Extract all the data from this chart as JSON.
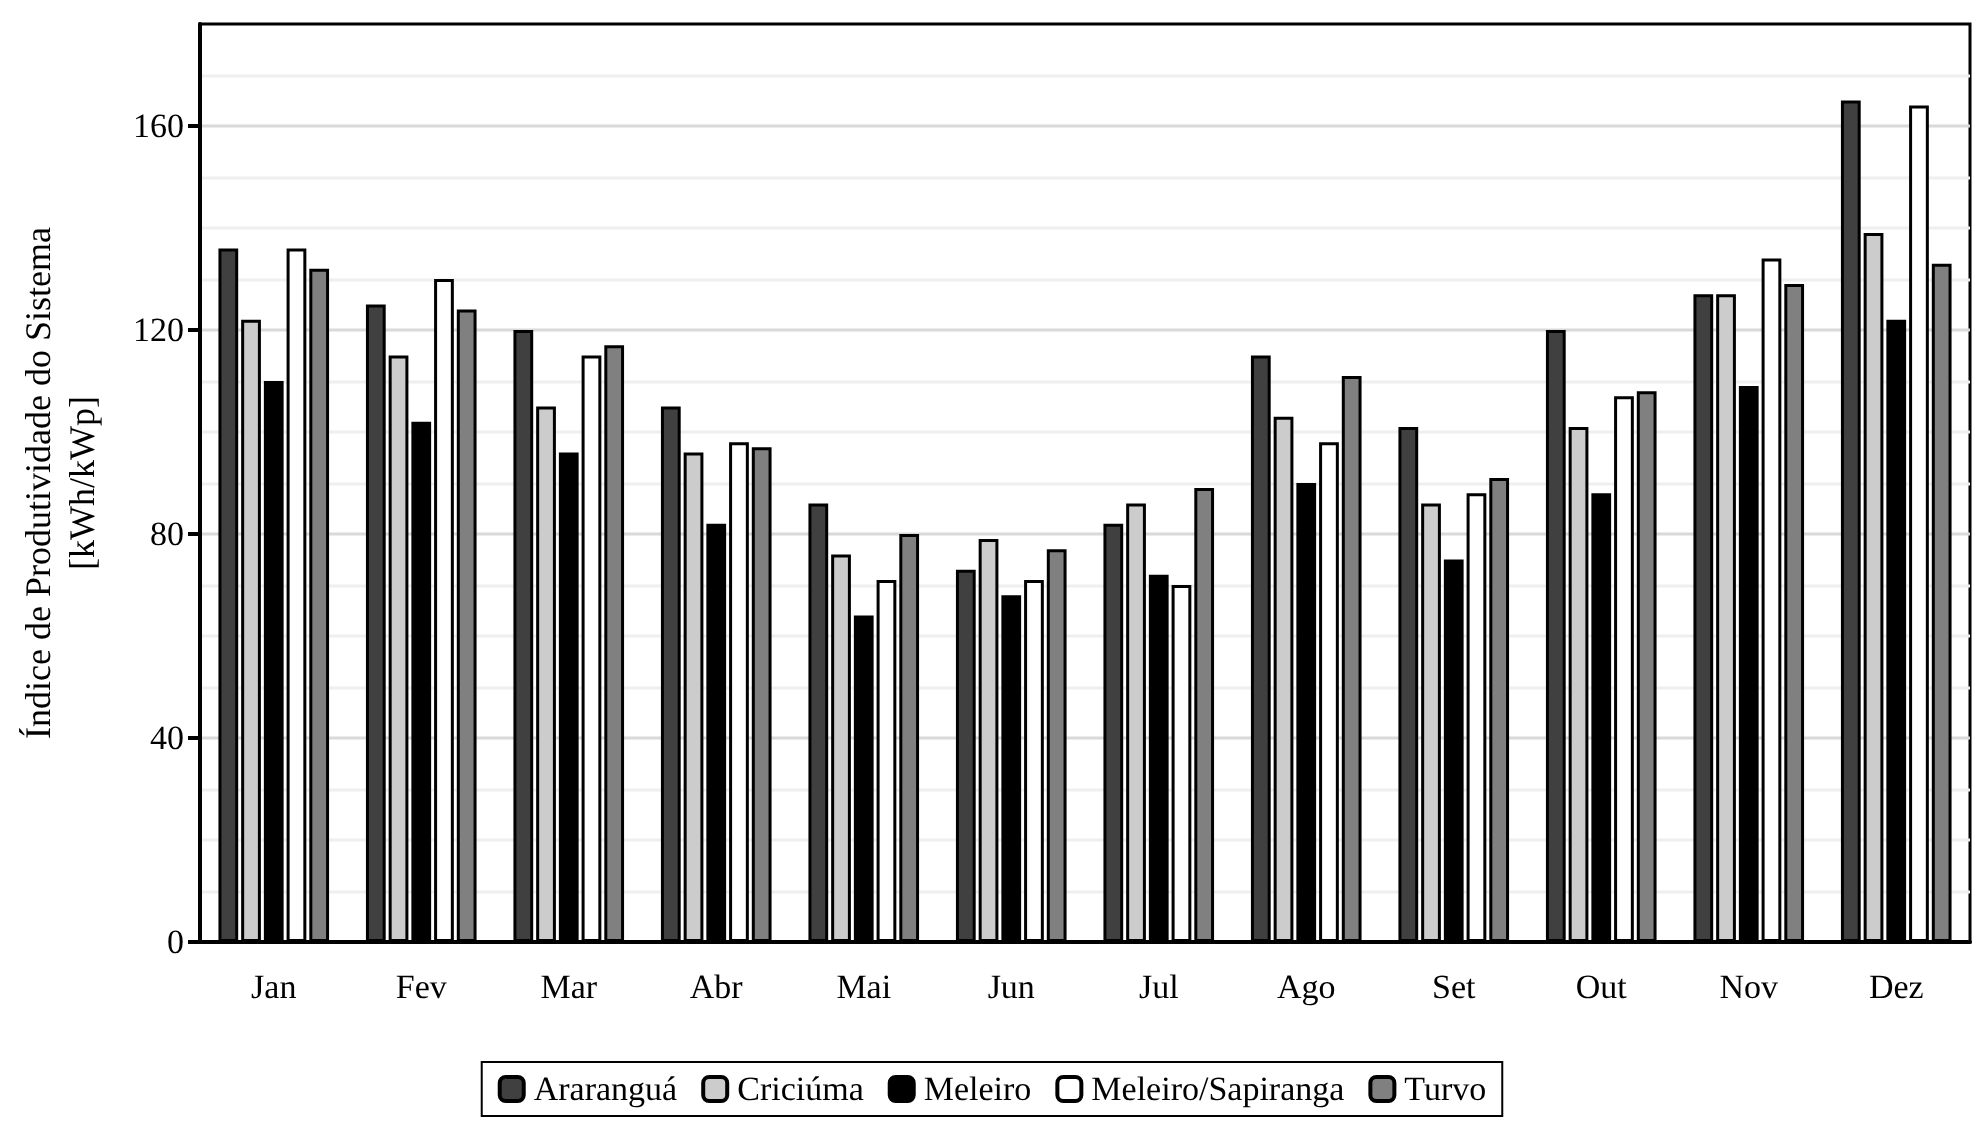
{
  "chart_data": {
    "type": "bar",
    "ylabel": "Índice de Produtividade do Sistema\n[kWh/kWp]",
    "categories": [
      "Jan",
      "Fev",
      "Mar",
      "Abr",
      "Mai",
      "Jun",
      "Jul",
      "Ago",
      "Set",
      "Out",
      "Nov",
      "Dez"
    ],
    "series": [
      {
        "name": "Araranguá",
        "color": "#404040",
        "values": [
          136,
          125,
          120,
          105,
          86,
          73,
          82,
          115,
          101,
          120,
          127,
          165
        ]
      },
      {
        "name": "Criciúma",
        "color": "#cccccc",
        "values": [
          122,
          115,
          105,
          96,
          76,
          79,
          86,
          103,
          86,
          101,
          127,
          139
        ]
      },
      {
        "name": "Meleiro",
        "color": "#000000",
        "values": [
          110,
          102,
          96,
          82,
          64,
          68,
          72,
          90,
          75,
          88,
          109,
          122
        ]
      },
      {
        "name": "Meleiro/Sapiranga",
        "color": "#ffffff",
        "values": [
          136,
          130,
          115,
          98,
          71,
          71,
          70,
          98,
          88,
          107,
          134,
          164
        ]
      },
      {
        "name": "Turvo",
        "color": "#808080",
        "values": [
          132,
          124,
          117,
          97,
          80,
          77,
          89,
          111,
          91,
          108,
          129,
          133
        ]
      }
    ],
    "ylim": [
      0,
      180
    ],
    "yticks": [
      0,
      40,
      80,
      120,
      160
    ],
    "grid": "y",
    "legend": "bottom"
  }
}
